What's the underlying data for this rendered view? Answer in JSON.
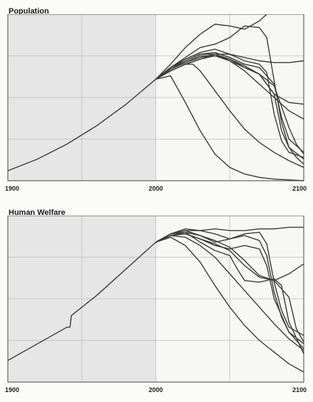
{
  "chart_data": [
    {
      "type": "line",
      "title": "Population",
      "xlim": [
        1900,
        2100
      ],
      "ylim": [
        0,
        10
      ],
      "x_ticks": [
        "1900",
        "2000",
        "2100"
      ],
      "grid": true,
      "shaded_region": [
        1900,
        2000
      ],
      "colors": {
        "line": "#3b3b3b",
        "grid": "#bdbdbd",
        "shade": "#e6e6e6",
        "plot_bg": "#f7f7f4"
      },
      "series": [
        {
          "values": [
            [
              1900,
              0.6
            ],
            [
              1920,
              1.3
            ],
            [
              1940,
              2.2
            ],
            [
              1960,
              3.3
            ],
            [
              1980,
              4.6
            ],
            [
              2000,
              6.1
            ]
          ]
        },
        {
          "values": [
            [
              2000,
              6.1
            ],
            [
              2010,
              7.0
            ],
            [
              2020,
              8.0
            ],
            [
              2030,
              8.8
            ],
            [
              2040,
              9.4
            ],
            [
              2050,
              9.3
            ],
            [
              2060,
              9.1
            ],
            [
              2070,
              9.6
            ],
            [
              2075,
              10.0
            ]
          ]
        },
        {
          "values": [
            [
              2000,
              6.1
            ],
            [
              2010,
              6.8
            ],
            [
              2020,
              7.4
            ],
            [
              2030,
              8.0
            ],
            [
              2040,
              8.2
            ],
            [
              2050,
              8.6
            ],
            [
              2060,
              9.3
            ],
            [
              2070,
              9.2
            ],
            [
              2075,
              8.6
            ],
            [
              2080,
              6.0
            ],
            [
              2085,
              3.5
            ],
            [
              2090,
              2.0
            ],
            [
              2095,
              1.4
            ],
            [
              2100,
              1.0
            ]
          ]
        },
        {
          "values": [
            [
              2000,
              6.1
            ],
            [
              2010,
              6.8
            ],
            [
              2020,
              7.3
            ],
            [
              2030,
              7.7
            ],
            [
              2040,
              7.9
            ],
            [
              2050,
              7.6
            ],
            [
              2060,
              7.2
            ],
            [
              2070,
              7.0
            ],
            [
              2075,
              6.5
            ],
            [
              2080,
              4.0
            ],
            [
              2085,
              2.4
            ],
            [
              2090,
              1.7
            ],
            [
              2100,
              1.4
            ]
          ]
        },
        {
          "values": [
            [
              2000,
              6.1
            ],
            [
              2010,
              6.8
            ],
            [
              2020,
              7.2
            ],
            [
              2030,
              7.6
            ],
            [
              2040,
              7.7
            ],
            [
              2050,
              7.4
            ],
            [
              2060,
              7.0
            ],
            [
              2070,
              6.8
            ],
            [
              2080,
              5.8
            ],
            [
              2085,
              3.8
            ],
            [
              2090,
              2.5
            ],
            [
              2100,
              1.7
            ]
          ]
        },
        {
          "values": [
            [
              2000,
              6.1
            ],
            [
              2010,
              6.7
            ],
            [
              2020,
              7.1
            ],
            [
              2030,
              7.4
            ],
            [
              2040,
              7.6
            ],
            [
              2050,
              7.3
            ],
            [
              2060,
              6.8
            ],
            [
              2070,
              6.4
            ],
            [
              2080,
              5.2
            ],
            [
              2085,
              3.0
            ],
            [
              2090,
              2.0
            ],
            [
              2100,
              1.3
            ]
          ]
        },
        {
          "values": [
            [
              2000,
              6.1
            ],
            [
              2010,
              6.7
            ],
            [
              2020,
              7.1
            ],
            [
              2030,
              7.5
            ],
            [
              2040,
              7.5
            ],
            [
              2050,
              7.3
            ],
            [
              2060,
              6.9
            ],
            [
              2070,
              6.4
            ],
            [
              2080,
              5.7
            ],
            [
              2090,
              3.2
            ],
            [
              2095,
              2.2
            ],
            [
              2100,
              1.6
            ]
          ]
        },
        {
          "values": [
            [
              2000,
              6.1
            ],
            [
              2010,
              6.6
            ],
            [
              2020,
              7.0
            ],
            [
              2030,
              7.3
            ],
            [
              2040,
              7.6
            ],
            [
              2050,
              7.6
            ],
            [
              2060,
              7.4
            ],
            [
              2070,
              7.2
            ],
            [
              2080,
              7.1
            ],
            [
              2090,
              7.1
            ],
            [
              2100,
              7.2
            ]
          ]
        },
        {
          "values": [
            [
              2000,
              6.1
            ],
            [
              2010,
              6.6
            ],
            [
              2020,
              7.0
            ],
            [
              2030,
              7.3
            ],
            [
              2040,
              7.5
            ],
            [
              2050,
              7.2
            ],
            [
              2060,
              6.8
            ],
            [
              2070,
              6.4
            ],
            [
              2080,
              5.2
            ],
            [
              2090,
              4.7
            ],
            [
              2100,
              4.6
            ]
          ]
        },
        {
          "values": [
            [
              2000,
              6.1
            ],
            [
              2010,
              6.7
            ],
            [
              2020,
              7.2
            ],
            [
              2030,
              7.6
            ],
            [
              2040,
              7.6
            ],
            [
              2050,
              7.2
            ],
            [
              2060,
              6.6
            ],
            [
              2070,
              5.8
            ],
            [
              2080,
              5.0
            ],
            [
              2090,
              4.2
            ],
            [
              2100,
              3.7
            ]
          ]
        },
        {
          "values": [
            [
              2000,
              6.1
            ],
            [
              2010,
              6.6
            ],
            [
              2020,
              7.0
            ],
            [
              2025,
              7.0
            ],
            [
              2030,
              6.6
            ],
            [
              2040,
              5.4
            ],
            [
              2050,
              4.2
            ],
            [
              2060,
              3.1
            ],
            [
              2070,
              2.3
            ],
            [
              2080,
              1.7
            ],
            [
              2090,
              1.2
            ],
            [
              2100,
              0.8
            ]
          ]
        },
        {
          "values": [
            [
              2000,
              6.1
            ],
            [
              2010,
              6.3
            ],
            [
              2020,
              4.7
            ],
            [
              2030,
              3.0
            ],
            [
              2040,
              1.6
            ],
            [
              2050,
              0.8
            ],
            [
              2060,
              0.4
            ],
            [
              2070,
              0.2
            ],
            [
              2080,
              0.1
            ],
            [
              2090,
              0.05
            ],
            [
              2100,
              0.0
            ]
          ]
        }
      ]
    },
    {
      "type": "line",
      "title": "Human Welfare",
      "xlim": [
        1900,
        2100
      ],
      "ylim": [
        0,
        10
      ],
      "x_ticks": [
        "1900",
        "2000",
        "2100"
      ],
      "grid": true,
      "shaded_region": [
        1900,
        2000
      ],
      "colors": {
        "line": "#3b3b3b",
        "grid": "#bdbdbd",
        "shade": "#e6e6e6",
        "plot_bg": "#f7f7f4"
      },
      "series": [
        {
          "values": [
            [
              1900,
              1.3
            ],
            [
              1920,
              2.3
            ],
            [
              1940,
              3.3
            ],
            [
              1942,
              3.3
            ],
            [
              1943,
              4.0
            ],
            [
              1960,
              5.2
            ],
            [
              1980,
              6.8
            ],
            [
              2000,
              8.4
            ]
          ]
        },
        {
          "values": [
            [
              2000,
              8.4
            ],
            [
              2010,
              8.9
            ],
            [
              2020,
              9.1
            ],
            [
              2030,
              9.1
            ],
            [
              2040,
              9.2
            ],
            [
              2050,
              9.1
            ],
            [
              2060,
              9.1
            ],
            [
              2070,
              9.2
            ],
            [
              2080,
              9.2
            ],
            [
              2090,
              9.3
            ],
            [
              2100,
              9.3
            ]
          ]
        },
        {
          "values": [
            [
              2000,
              8.4
            ],
            [
              2010,
              8.9
            ],
            [
              2020,
              9.2
            ],
            [
              2030,
              9.1
            ],
            [
              2040,
              8.9
            ],
            [
              2050,
              8.6
            ],
            [
              2060,
              8.9
            ],
            [
              2070,
              9.0
            ],
            [
              2075,
              8.3
            ],
            [
              2080,
              6.0
            ],
            [
              2085,
              4.3
            ],
            [
              2090,
              3.3
            ],
            [
              2100,
              2.8
            ]
          ]
        },
        {
          "values": [
            [
              2000,
              8.4
            ],
            [
              2010,
              8.9
            ],
            [
              2020,
              9.1
            ],
            [
              2030,
              8.8
            ],
            [
              2040,
              8.4
            ],
            [
              2050,
              8.6
            ],
            [
              2060,
              8.8
            ],
            [
              2070,
              8.5
            ],
            [
              2075,
              7.6
            ],
            [
              2080,
              5.4
            ],
            [
              2085,
              3.9
            ],
            [
              2090,
              3.0
            ],
            [
              2100,
              2.3
            ]
          ]
        },
        {
          "values": [
            [
              2000,
              8.4
            ],
            [
              2010,
              8.8
            ],
            [
              2020,
              8.9
            ],
            [
              2030,
              8.6
            ],
            [
              2040,
              8.2
            ],
            [
              2050,
              8.0
            ],
            [
              2060,
              8.2
            ],
            [
              2070,
              8.0
            ],
            [
              2075,
              7.0
            ],
            [
              2080,
              5.0
            ],
            [
              2090,
              3.0
            ],
            [
              2100,
              2.0
            ]
          ]
        },
        {
          "values": [
            [
              2000,
              8.4
            ],
            [
              2010,
              8.9
            ],
            [
              2020,
              9.0
            ],
            [
              2030,
              8.4
            ],
            [
              2040,
              7.9
            ],
            [
              2050,
              7.6
            ],
            [
              2055,
              6.8
            ],
            [
              2060,
              6.1
            ],
            [
              2070,
              6.0
            ],
            [
              2080,
              6.2
            ],
            [
              2085,
              5.8
            ],
            [
              2090,
              3.6
            ],
            [
              2100,
              1.7
            ]
          ]
        },
        {
          "values": [
            [
              2000,
              8.4
            ],
            [
              2010,
              8.8
            ],
            [
              2020,
              8.9
            ],
            [
              2030,
              8.6
            ],
            [
              2040,
              8.3
            ],
            [
              2050,
              7.9
            ],
            [
              2060,
              7.0
            ],
            [
              2070,
              6.3
            ],
            [
              2080,
              6.1
            ],
            [
              2090,
              5.1
            ],
            [
              2095,
              3.2
            ],
            [
              2100,
              2.4
            ]
          ]
        },
        {
          "values": [
            [
              2000,
              8.4
            ],
            [
              2010,
              8.8
            ],
            [
              2020,
              9.0
            ],
            [
              2030,
              8.8
            ],
            [
              2040,
              8.5
            ],
            [
              2050,
              8.1
            ],
            [
              2060,
              7.3
            ],
            [
              2070,
              6.4
            ],
            [
              2080,
              6.1
            ],
            [
              2090,
              6.5
            ],
            [
              2100,
              7.1
            ]
          ]
        },
        {
          "values": [
            [
              2000,
              8.4
            ],
            [
              2010,
              8.8
            ],
            [
              2020,
              8.7
            ],
            [
              2030,
              8.2
            ],
            [
              2040,
              7.5
            ],
            [
              2050,
              6.5
            ],
            [
              2060,
              5.5
            ],
            [
              2070,
              4.5
            ],
            [
              2080,
              3.5
            ],
            [
              2090,
              2.6
            ],
            [
              2100,
              1.9
            ]
          ]
        },
        {
          "values": [
            [
              2000,
              8.4
            ],
            [
              2010,
              8.7
            ],
            [
              2020,
              8.2
            ],
            [
              2030,
              7.2
            ],
            [
              2040,
              5.8
            ],
            [
              2050,
              4.5
            ],
            [
              2060,
              3.4
            ],
            [
              2070,
              2.5
            ],
            [
              2080,
              1.8
            ],
            [
              2090,
              1.1
            ],
            [
              2100,
              0.6
            ]
          ]
        }
      ]
    }
  ]
}
